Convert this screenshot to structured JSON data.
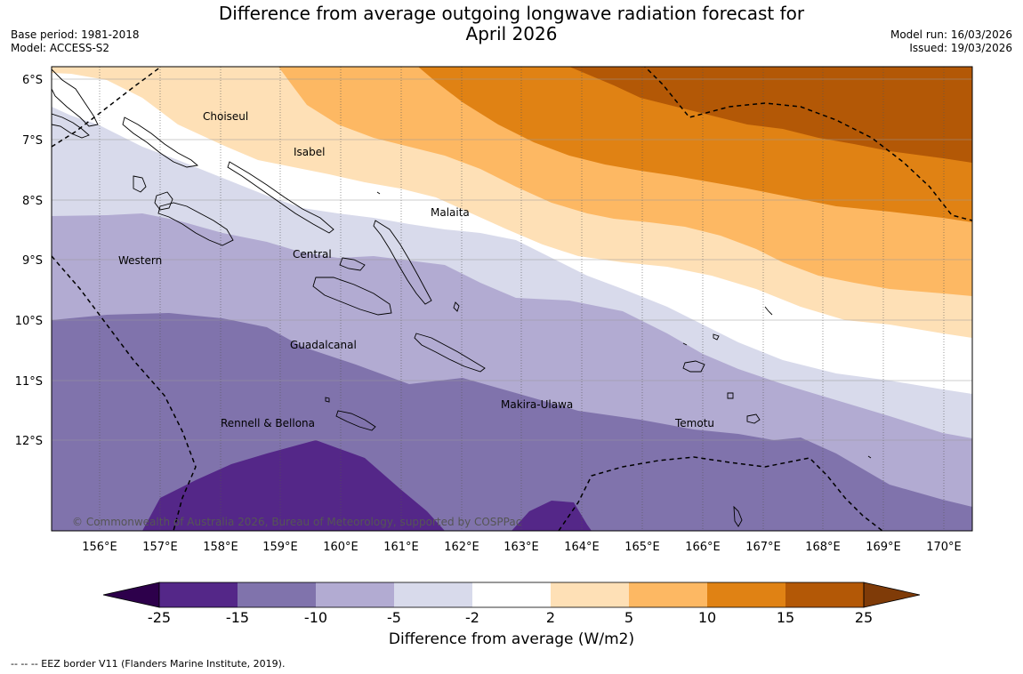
{
  "title": {
    "line1": "Difference from average outgoing longwave radiation forecast for",
    "line2": "April 2026"
  },
  "meta": {
    "base_period": "Base period: 1981-2018",
    "model": "Model: ACCESS-S2",
    "model_run": "Model run: 16/03/2026",
    "issued": "Issued: 19/03/2026"
  },
  "map": {
    "lat_labels": [
      "6°S",
      "7°S",
      "8°S",
      "9°S",
      "10°S",
      "11°S",
      "12°S"
    ],
    "lon_labels": [
      "156°E",
      "157°E",
      "158°E",
      "159°E",
      "160°E",
      "161°E",
      "162°E",
      "163°E",
      "164°E",
      "165°E",
      "166°E",
      "167°E",
      "168°E",
      "169°E",
      "170°E"
    ],
    "places": {
      "choiseul": "Choiseul",
      "isabel": "Isabel",
      "malaita": "Malaita",
      "central": "Central",
      "western": "Western",
      "guadalcanal": "Guadalcanal",
      "makira": "Makira-Ulawa",
      "temotu": "Temotu",
      "rennell": "Rennell & Bellona"
    },
    "copyright": "© Commonwealth of Australia 2026, Bureau of Meteorology, supported by COSPPac"
  },
  "colorbar": {
    "labels": [
      "-25",
      "-15",
      "-10",
      "-5",
      "-2",
      "2",
      "5",
      "10",
      "15",
      "25"
    ],
    "colors": [
      "#2d004b",
      "#542788",
      "#8073ac",
      "#b2abd2",
      "#d8daeb",
      "#ffffff",
      "#fee0b6",
      "#fdb863",
      "#e08214",
      "#b35806",
      "#7f3b08"
    ],
    "title": "Difference from average (W/m2)"
  },
  "legend": {
    "eez": "--  --  -- EEZ border V11 (Flanders Marine Institute, 2019)."
  }
}
